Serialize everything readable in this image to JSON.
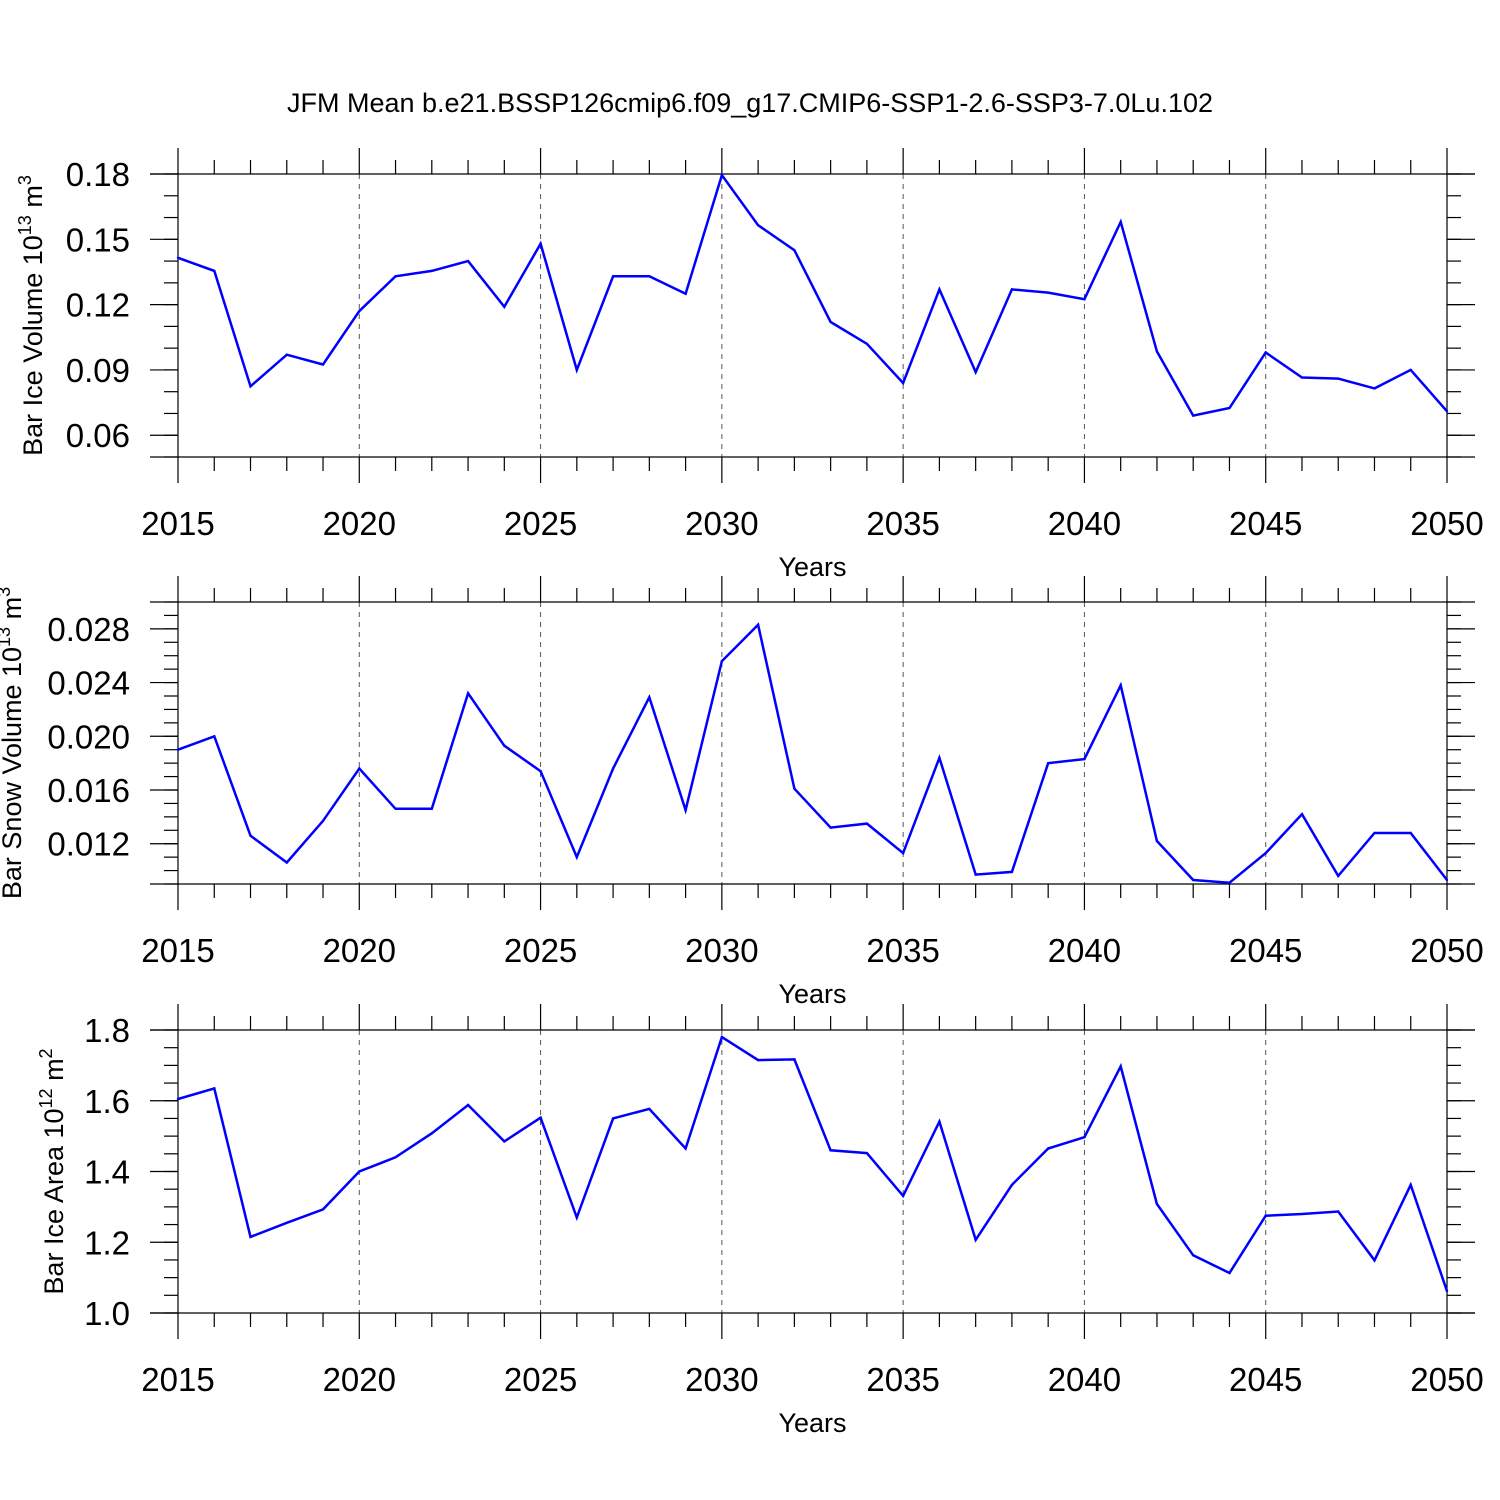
{
  "figure_title": "JFM Mean b.e21.BSSP126cmip6.f09_g17.CMIP6-SSP1-2.6-SSP3-7.0Lu.102",
  "colors": {
    "line": "#0000ff",
    "axis": "#000000",
    "grid": "#555555"
  },
  "chart_data": [
    {
      "type": "line",
      "title": "JFM Mean b.e21.BSSP126cmip6.f09_g17.CMIP6-SSP1-2.6-SSP3-7.0Lu.102",
      "xlabel": "Years",
      "ylabel": {
        "base": "Bar Ice Volume 10",
        "exponent": "13",
        "unit": " m",
        "unit_exponent": "3"
      },
      "xlim": [
        2015,
        2050
      ],
      "ylim": [
        0.05,
        0.18
      ],
      "xticks": [
        2015,
        2020,
        2025,
        2030,
        2035,
        2040,
        2045,
        2050
      ],
      "yticks": [
        0.06,
        0.09,
        0.12,
        0.15,
        0.18
      ],
      "ytick_labels": [
        "0.06",
        "0.09",
        "0.12",
        "0.15",
        "0.18"
      ],
      "yminor_step": 0.01,
      "grid": "vertical-dashed",
      "series": [
        {
          "name": "Bar Ice Volume",
          "x": [
            2015,
            2016,
            2017,
            2018,
            2019,
            2020,
            2021,
            2022,
            2023,
            2024,
            2025,
            2026,
            2027,
            2028,
            2029,
            2030,
            2031,
            2032,
            2033,
            2034,
            2035,
            2036,
            2037,
            2038,
            2039,
            2040,
            2041,
            2042,
            2043,
            2044,
            2045,
            2046,
            2047,
            2048,
            2049,
            2050
          ],
          "values": [
            0.1415,
            0.1355,
            0.0825,
            0.097,
            0.0925,
            0.117,
            0.133,
            0.1355,
            0.14,
            0.119,
            0.148,
            0.09,
            0.133,
            0.133,
            0.125,
            0.1795,
            0.1565,
            0.145,
            0.112,
            0.102,
            0.084,
            0.127,
            0.089,
            0.127,
            0.1255,
            0.1225,
            0.158,
            0.0985,
            0.069,
            0.0725,
            0.098,
            0.0865,
            0.086,
            0.0815,
            0.09,
            0.071
          ]
        }
      ]
    },
    {
      "type": "line",
      "xlabel": "Years",
      "ylabel": {
        "base": "Bar Snow Volume 10",
        "exponent": "13",
        "unit": " m",
        "unit_exponent": "3"
      },
      "xlim": [
        2015,
        2050
      ],
      "ylim": [
        0.009,
        0.03
      ],
      "xticks": [
        2015,
        2020,
        2025,
        2030,
        2035,
        2040,
        2045,
        2050
      ],
      "yticks": [
        0.012,
        0.016,
        0.02,
        0.024,
        0.028
      ],
      "ytick_labels": [
        "0.012",
        "0.016",
        "0.020",
        "0.024",
        "0.028"
      ],
      "yminor_step": 0.001,
      "grid": "vertical-dashed",
      "series": [
        {
          "name": "Bar Snow Volume",
          "x": [
            2015,
            2016,
            2017,
            2018,
            2019,
            2020,
            2021,
            2022,
            2023,
            2024,
            2025,
            2026,
            2027,
            2028,
            2029,
            2030,
            2031,
            2032,
            2033,
            2034,
            2035,
            2036,
            2037,
            2038,
            2039,
            2040,
            2041,
            2042,
            2043,
            2044,
            2045,
            2046,
            2047,
            2048,
            2049,
            2050
          ],
          "values": [
            0.019,
            0.02,
            0.0126,
            0.0106,
            0.0137,
            0.0176,
            0.0146,
            0.0146,
            0.0232,
            0.0193,
            0.0174,
            0.011,
            0.0176,
            0.0229,
            0.0145,
            0.0256,
            0.0283,
            0.0161,
            0.0132,
            0.0135,
            0.0113,
            0.0184,
            0.0097,
            0.0099,
            0.018,
            0.0183,
            0.0238,
            0.0122,
            0.0093,
            0.0091,
            0.0113,
            0.0142,
            0.0096,
            0.0128,
            0.0128,
            0.0093
          ]
        }
      ]
    },
    {
      "type": "line",
      "xlabel": "Years",
      "ylabel": {
        "base": "Bar Ice Area 10",
        "exponent": "12",
        "unit": " m",
        "unit_exponent": "2"
      },
      "xlim": [
        2015,
        2050
      ],
      "ylim": [
        1.0,
        1.8
      ],
      "xticks": [
        2015,
        2020,
        2025,
        2030,
        2035,
        2040,
        2045,
        2050
      ],
      "yticks": [
        1.0,
        1.2,
        1.4,
        1.6,
        1.8
      ],
      "ytick_labels": [
        "1.0",
        "1.2",
        "1.4",
        "1.6",
        "1.8"
      ],
      "yminor_step": 0.05,
      "grid": "vertical-dashed",
      "series": [
        {
          "name": "Bar Ice Area",
          "x": [
            2015,
            2016,
            2017,
            2018,
            2019,
            2020,
            2021,
            2022,
            2023,
            2024,
            2025,
            2026,
            2027,
            2028,
            2029,
            2030,
            2031,
            2032,
            2033,
            2034,
            2035,
            2036,
            2037,
            2038,
            2039,
            2040,
            2041,
            2042,
            2043,
            2044,
            2045,
            2046,
            2047,
            2048,
            2049,
            2050
          ],
          "values": [
            1.605,
            1.635,
            1.215,
            1.255,
            1.293,
            1.4,
            1.44,
            1.508,
            1.588,
            1.485,
            1.552,
            1.27,
            1.55,
            1.577,
            1.465,
            1.78,
            1.715,
            1.717,
            1.46,
            1.452,
            1.331,
            1.541,
            1.207,
            1.362,
            1.465,
            1.497,
            1.697,
            1.308,
            1.163,
            1.113,
            1.275,
            1.28,
            1.287,
            1.149,
            1.362,
            1.062
          ]
        }
      ]
    }
  ]
}
